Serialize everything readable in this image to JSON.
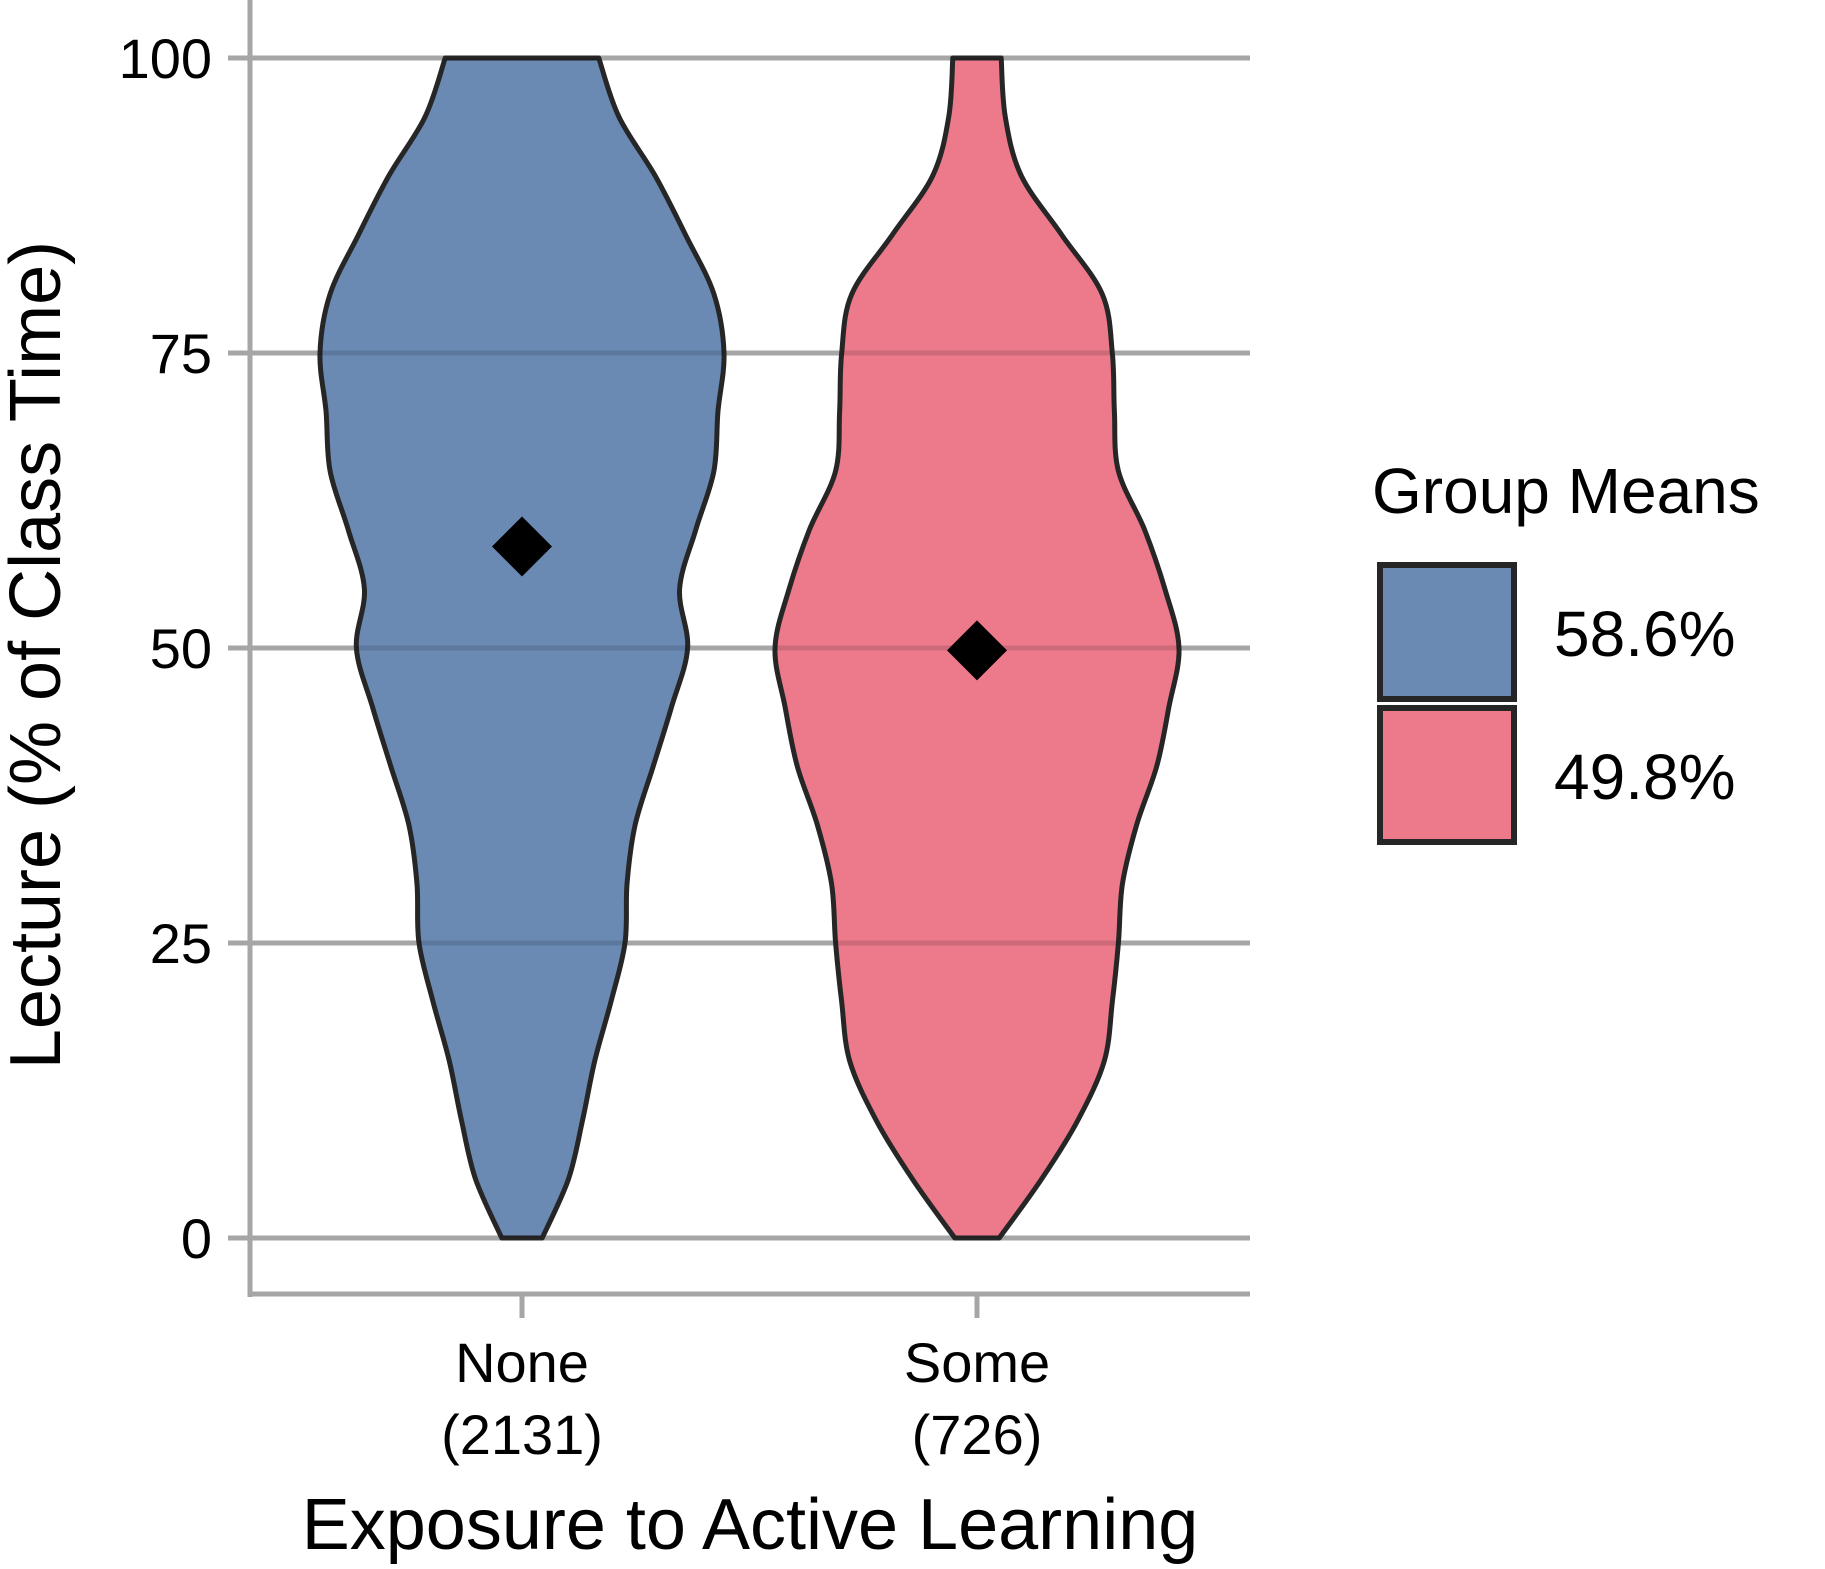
{
  "chart_data": {
    "type": "violin",
    "ylabel": "Lecture (% of Class Time)",
    "xlabel": "Exposure to Active Learning",
    "ylim": [
      0,
      100
    ],
    "yticks": [
      "0",
      "25",
      "50",
      "75",
      "100"
    ],
    "grid": true,
    "legend": {
      "title": "Group Means",
      "placement": "right",
      "entries": [
        {
          "label": "58.6%",
          "color": "#6a8ab4"
        },
        {
          "label": "49.8%",
          "color": "#ec7a8b"
        }
      ]
    },
    "categories": [
      {
        "label": "None",
        "count": "(2131)"
      },
      {
        "label": "Some",
        "count": "(726)"
      }
    ],
    "means": [
      58.6,
      49.8
    ],
    "series": [
      {
        "category": "None",
        "color": "#6a8ab4",
        "mean": 58.6,
        "density_profile": [
          {
            "y": 0,
            "w": 0.1
          },
          {
            "y": 5,
            "w": 0.23
          },
          {
            "y": 10,
            "w": 0.3
          },
          {
            "y": 15,
            "w": 0.36
          },
          {
            "y": 20,
            "w": 0.44
          },
          {
            "y": 25,
            "w": 0.51
          },
          {
            "y": 30,
            "w": 0.52
          },
          {
            "y": 35,
            "w": 0.56
          },
          {
            "y": 40,
            "w": 0.65
          },
          {
            "y": 45,
            "w": 0.74
          },
          {
            "y": 50,
            "w": 0.82
          },
          {
            "y": 55,
            "w": 0.78
          },
          {
            "y": 60,
            "w": 0.86
          },
          {
            "y": 65,
            "w": 0.95
          },
          {
            "y": 70,
            "w": 0.97
          },
          {
            "y": 75,
            "w": 1.0
          },
          {
            "y": 80,
            "w": 0.95
          },
          {
            "y": 85,
            "w": 0.81
          },
          {
            "y": 90,
            "w": 0.66
          },
          {
            "y": 95,
            "w": 0.48
          },
          {
            "y": 100,
            "w": 0.38
          }
        ]
      },
      {
        "category": "Some",
        "color": "#ec7a8b",
        "mean": 49.8,
        "density_profile": [
          {
            "y": 0,
            "w": 0.11
          },
          {
            "y": 5,
            "w": 0.32
          },
          {
            "y": 10,
            "w": 0.5
          },
          {
            "y": 15,
            "w": 0.63
          },
          {
            "y": 20,
            "w": 0.67
          },
          {
            "y": 25,
            "w": 0.7
          },
          {
            "y": 30,
            "w": 0.72
          },
          {
            "y": 35,
            "w": 0.79
          },
          {
            "y": 40,
            "w": 0.89
          },
          {
            "y": 45,
            "w": 0.95
          },
          {
            "y": 50,
            "w": 1.0
          },
          {
            "y": 55,
            "w": 0.93
          },
          {
            "y": 60,
            "w": 0.83
          },
          {
            "y": 65,
            "w": 0.7
          },
          {
            "y": 70,
            "w": 0.68
          },
          {
            "y": 75,
            "w": 0.67
          },
          {
            "y": 80,
            "w": 0.62
          },
          {
            "y": 85,
            "w": 0.42
          },
          {
            "y": 90,
            "w": 0.22
          },
          {
            "y": 95,
            "w": 0.14
          },
          {
            "y": 100,
            "w": 0.12
          }
        ]
      }
    ]
  }
}
